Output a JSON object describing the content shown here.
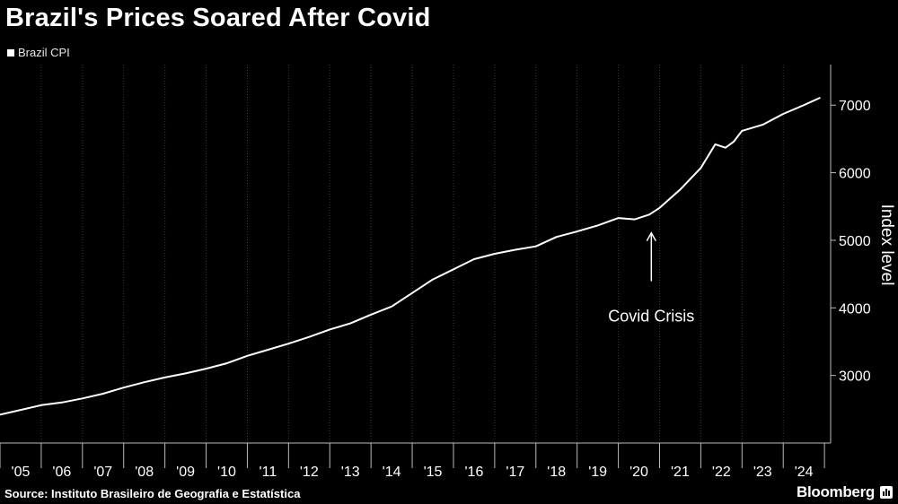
{
  "header": {
    "title": "Brazil's Prices Soared After Covid"
  },
  "legend": {
    "items": [
      {
        "label": "Brazil CPI",
        "color": "#ffffff"
      }
    ]
  },
  "footer": {
    "source": "Source: Instituto Brasileiro de Geografia e Estatística",
    "brand": "Bloomberg"
  },
  "brand_icon": "bloomberg-chart-icon",
  "chart_data": {
    "type": "line",
    "title": "Brazil's Prices Soared After Covid",
    "xlabel": "",
    "ylabel": "Index level",
    "xlim": [
      2005.0,
      2025.15
    ],
    "ylim": [
      2000,
      7600
    ],
    "yticks": [
      3000,
      4000,
      5000,
      6000,
      7000
    ],
    "xtick_labels": [
      "'05",
      "'06",
      "'07",
      "'08",
      "'09",
      "'10",
      "'11",
      "'12",
      "'13",
      "'14",
      "'15",
      "'16",
      "'17",
      "'18",
      "'19",
      "'20",
      "'21",
      "'22",
      "'23",
      "'24"
    ],
    "grid": "vertical",
    "legend_position": "top-left",
    "series": [
      {
        "name": "Brazil CPI",
        "color": "#ffffff",
        "x": [
          2005.0,
          2005.5,
          2006.0,
          2006.5,
          2007.0,
          2007.5,
          2008.0,
          2008.5,
          2009.0,
          2009.5,
          2010.0,
          2010.5,
          2011.0,
          2011.5,
          2012.0,
          2012.5,
          2013.0,
          2013.5,
          2014.0,
          2014.5,
          2015.0,
          2015.5,
          2016.0,
          2016.5,
          2017.0,
          2017.5,
          2018.0,
          2018.5,
          2019.0,
          2019.5,
          2020.0,
          2020.4,
          2020.75,
          2021.0,
          2021.5,
          2022.0,
          2022.35,
          2022.6,
          2022.8,
          2023.0,
          2023.5,
          2024.0,
          2024.5,
          2024.9
        ],
        "values": [
          2420,
          2490,
          2560,
          2600,
          2660,
          2730,
          2820,
          2900,
          2970,
          3030,
          3100,
          3180,
          3290,
          3380,
          3470,
          3570,
          3680,
          3770,
          3900,
          4020,
          4220,
          4420,
          4570,
          4720,
          4800,
          4860,
          4910,
          5050,
          5130,
          5220,
          5330,
          5310,
          5380,
          5480,
          5750,
          6070,
          6420,
          6370,
          6460,
          6620,
          6710,
          6870,
          7000,
          7110
        ]
      }
    ],
    "annotations": [
      {
        "text": "Covid Crisis",
        "x": 2020.8,
        "y": 5150,
        "arrow": true
      }
    ]
  }
}
